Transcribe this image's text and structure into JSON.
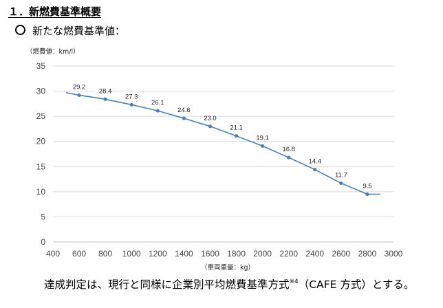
{
  "heading": "１．新燃費基準概要",
  "subheading": "新たな燃費基準値：",
  "footer": {
    "text_before": "達成判定は、現行と同様に企業別平均燃費基準方式",
    "note_ref": "※4",
    "text_after": "（CAFE 方式）とする。"
  },
  "chart_data": {
    "type": "line",
    "ylabel": "（燃費値：km/l）",
    "xlabel": "（車両重量：kg）",
    "xlim": [
      400,
      3000
    ],
    "ylim": [
      0,
      35
    ],
    "x_ticks": [
      400,
      600,
      800,
      1000,
      1200,
      1400,
      1600,
      1800,
      2000,
      2200,
      2400,
      2600,
      2800,
      3000
    ],
    "y_ticks": [
      0,
      5,
      10,
      15,
      20,
      25,
      30,
      35
    ],
    "grid": "horizontal",
    "line_color": "#4a80b5",
    "grid_color": "#d9d9d9",
    "points": [
      {
        "x": 600,
        "y": 29.2,
        "label": "29.2"
      },
      {
        "x": 800,
        "y": 28.4,
        "label": "28.4"
      },
      {
        "x": 1000,
        "y": 27.3,
        "label": "27.3"
      },
      {
        "x": 1200,
        "y": 26.1,
        "label": "26.1"
      },
      {
        "x": 1400,
        "y": 24.6,
        "label": "24.6"
      },
      {
        "x": 1600,
        "y": 23.0,
        "label": "23.0"
      },
      {
        "x": 1800,
        "y": 21.1,
        "label": "21.1"
      },
      {
        "x": 2000,
        "y": 19.1,
        "label": "19.1"
      },
      {
        "x": 2200,
        "y": 16.8,
        "label": "16.8"
      },
      {
        "x": 2400,
        "y": 14.4,
        "label": "14.4"
      },
      {
        "x": 2600,
        "y": 11.7,
        "label": "11.7"
      },
      {
        "x": 2800,
        "y": 9.5,
        "label": "9.5"
      }
    ],
    "line_start": {
      "x": 500,
      "y": 29.7
    },
    "line_end": {
      "x": 2900,
      "y": 9.5
    }
  }
}
